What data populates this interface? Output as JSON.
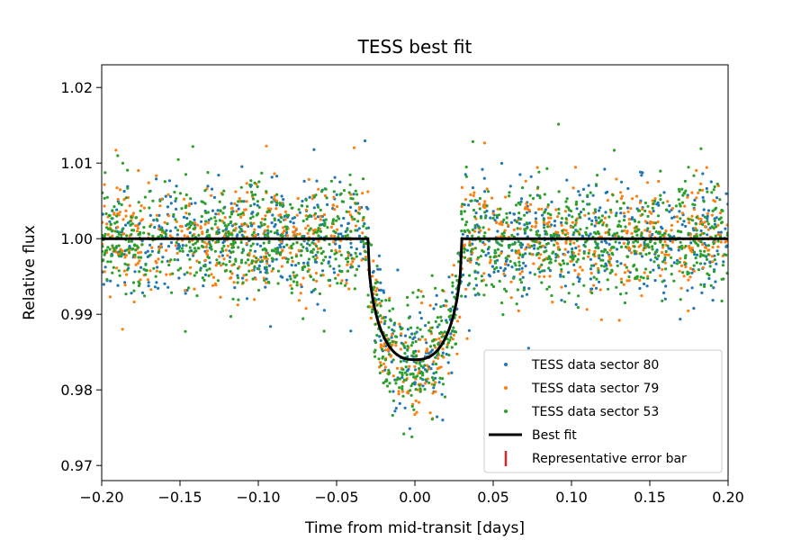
{
  "chart_data": {
    "type": "scatter",
    "title": "TESS best fit",
    "xlabel": "Time from mid-transit [days]",
    "ylabel": "Relative flux",
    "xlim": [
      -0.2,
      0.2
    ],
    "ylim": [
      0.968,
      1.023
    ],
    "x_ticks": [
      -0.2,
      -0.15,
      -0.1,
      -0.05,
      0.0,
      0.05,
      0.1,
      0.15,
      0.2
    ],
    "x_tick_labels": [
      "−0.20",
      "−0.15",
      "−0.10",
      "−0.05",
      "0.00",
      "0.05",
      "0.10",
      "0.15",
      "0.20"
    ],
    "y_ticks": [
      0.97,
      0.98,
      0.99,
      1.0,
      1.01,
      1.02
    ],
    "y_tick_labels": [
      "0.97",
      "0.98",
      "0.99",
      "1.00",
      "1.01",
      "1.02"
    ],
    "grid": false,
    "legend_position": "lower-right",
    "series": [
      {
        "name": "TESS data sector 80",
        "color": "#1f77b4",
        "marker": "dot",
        "points": 900
      },
      {
        "name": "TESS data sector 79",
        "color": "#ff7f0e",
        "marker": "dot",
        "points": 900
      },
      {
        "name": "TESS data sector 53",
        "color": "#2ca02c",
        "marker": "dot",
        "points": 1400
      }
    ],
    "best_fit": {
      "name": "Best fit",
      "color": "#000000",
      "baseline": 1.0,
      "depth_min": 0.984,
      "transit_start": -0.03,
      "transit_end": 0.03,
      "ingress_duration": 0.012
    },
    "error_bar": {
      "name": "Representative error bar",
      "color": "#d62728"
    }
  }
}
